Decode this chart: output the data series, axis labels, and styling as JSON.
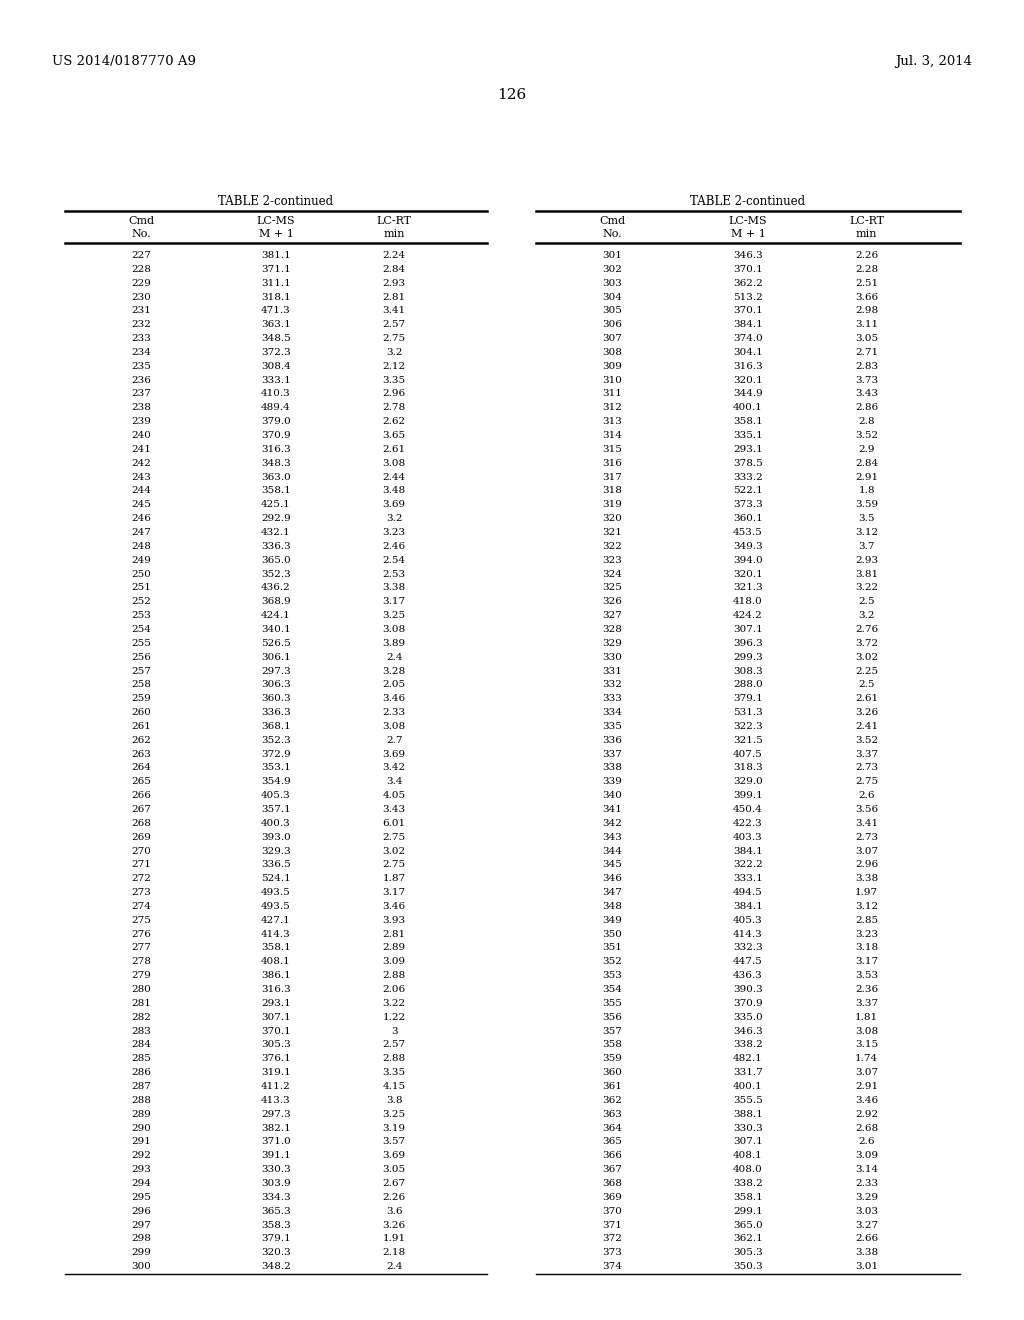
{
  "header_left": "US 2014/0187770 A9",
  "header_right": "Jul. 3, 2014",
  "page_number": "126",
  "table_title": "TABLE 2-continued",
  "col_headers_line1": [
    "Cmd",
    "LC-MS",
    "LC-RT"
  ],
  "col_headers_line2": [
    "No.",
    "M + 1",
    "min"
  ],
  "left_data": [
    [
      227,
      "381.1",
      "2.24"
    ],
    [
      228,
      "371.1",
      "2.84"
    ],
    [
      229,
      "311.1",
      "2.93"
    ],
    [
      230,
      "318.1",
      "2.81"
    ],
    [
      231,
      "471.3",
      "3.41"
    ],
    [
      232,
      "363.1",
      "2.57"
    ],
    [
      233,
      "348.5",
      "2.75"
    ],
    [
      234,
      "372.3",
      "3.2"
    ],
    [
      235,
      "308.4",
      "2.12"
    ],
    [
      236,
      "333.1",
      "3.35"
    ],
    [
      237,
      "410.3",
      "2.96"
    ],
    [
      238,
      "489.4",
      "2.78"
    ],
    [
      239,
      "379.0",
      "2.62"
    ],
    [
      240,
      "370.9",
      "3.65"
    ],
    [
      241,
      "316.3",
      "2.61"
    ],
    [
      242,
      "348.3",
      "3.08"
    ],
    [
      243,
      "363.0",
      "2.44"
    ],
    [
      244,
      "358.1",
      "3.48"
    ],
    [
      245,
      "425.1",
      "3.69"
    ],
    [
      246,
      "292.9",
      "3.2"
    ],
    [
      247,
      "432.1",
      "3.23"
    ],
    [
      248,
      "336.3",
      "2.46"
    ],
    [
      249,
      "365.0",
      "2.54"
    ],
    [
      250,
      "352.3",
      "2.53"
    ],
    [
      251,
      "436.2",
      "3.38"
    ],
    [
      252,
      "368.9",
      "3.17"
    ],
    [
      253,
      "424.1",
      "3.25"
    ],
    [
      254,
      "340.1",
      "3.08"
    ],
    [
      255,
      "526.5",
      "3.89"
    ],
    [
      256,
      "306.1",
      "2.4"
    ],
    [
      257,
      "297.3",
      "3.28"
    ],
    [
      258,
      "306.3",
      "2.05"
    ],
    [
      259,
      "360.3",
      "3.46"
    ],
    [
      260,
      "336.3",
      "2.33"
    ],
    [
      261,
      "368.1",
      "3.08"
    ],
    [
      262,
      "352.3",
      "2.7"
    ],
    [
      263,
      "372.9",
      "3.69"
    ],
    [
      264,
      "353.1",
      "3.42"
    ],
    [
      265,
      "354.9",
      "3.4"
    ],
    [
      266,
      "405.3",
      "4.05"
    ],
    [
      267,
      "357.1",
      "3.43"
    ],
    [
      268,
      "400.3",
      "6.01"
    ],
    [
      269,
      "393.0",
      "2.75"
    ],
    [
      270,
      "329.3",
      "3.02"
    ],
    [
      271,
      "336.5",
      "2.75"
    ],
    [
      272,
      "524.1",
      "1.87"
    ],
    [
      273,
      "493.5",
      "3.17"
    ],
    [
      274,
      "493.5",
      "3.46"
    ],
    [
      275,
      "427.1",
      "3.93"
    ],
    [
      276,
      "414.3",
      "2.81"
    ],
    [
      277,
      "358.1",
      "2.89"
    ],
    [
      278,
      "408.1",
      "3.09"
    ],
    [
      279,
      "386.1",
      "2.88"
    ],
    [
      280,
      "316.3",
      "2.06"
    ],
    [
      281,
      "293.1",
      "3.22"
    ],
    [
      282,
      "307.1",
      "1.22"
    ],
    [
      283,
      "370.1",
      "3"
    ],
    [
      284,
      "305.3",
      "2.57"
    ],
    [
      285,
      "376.1",
      "2.88"
    ],
    [
      286,
      "319.1",
      "3.35"
    ],
    [
      287,
      "411.2",
      "4.15"
    ],
    [
      288,
      "413.3",
      "3.8"
    ],
    [
      289,
      "297.3",
      "3.25"
    ],
    [
      290,
      "382.1",
      "3.19"
    ],
    [
      291,
      "371.0",
      "3.57"
    ],
    [
      292,
      "391.1",
      "3.69"
    ],
    [
      293,
      "330.3",
      "3.05"
    ],
    [
      294,
      "303.9",
      "2.67"
    ],
    [
      295,
      "334.3",
      "2.26"
    ],
    [
      296,
      "365.3",
      "3.6"
    ],
    [
      297,
      "358.3",
      "3.26"
    ],
    [
      298,
      "379.1",
      "1.91"
    ],
    [
      299,
      "320.3",
      "2.18"
    ],
    [
      300,
      "348.2",
      "2.4"
    ]
  ],
  "right_data": [
    [
      301,
      "346.3",
      "2.26"
    ],
    [
      302,
      "370.1",
      "2.28"
    ],
    [
      303,
      "362.2",
      "2.51"
    ],
    [
      304,
      "513.2",
      "3.66"
    ],
    [
      305,
      "370.1",
      "2.98"
    ],
    [
      306,
      "384.1",
      "3.11"
    ],
    [
      307,
      "374.0",
      "3.05"
    ],
    [
      308,
      "304.1",
      "2.71"
    ],
    [
      309,
      "316.3",
      "2.83"
    ],
    [
      310,
      "320.1",
      "3.73"
    ],
    [
      311,
      "344.9",
      "3.43"
    ],
    [
      312,
      "400.1",
      "2.86"
    ],
    [
      313,
      "358.1",
      "2.8"
    ],
    [
      314,
      "335.1",
      "3.52"
    ],
    [
      315,
      "293.1",
      "2.9"
    ],
    [
      316,
      "378.5",
      "2.84"
    ],
    [
      317,
      "333.2",
      "2.91"
    ],
    [
      318,
      "522.1",
      "1.8"
    ],
    [
      319,
      "373.3",
      "3.59"
    ],
    [
      320,
      "360.1",
      "3.5"
    ],
    [
      321,
      "453.5",
      "3.12"
    ],
    [
      322,
      "349.3",
      "3.7"
    ],
    [
      323,
      "394.0",
      "2.93"
    ],
    [
      324,
      "320.1",
      "3.81"
    ],
    [
      325,
      "321.3",
      "3.22"
    ],
    [
      326,
      "418.0",
      "2.5"
    ],
    [
      327,
      "424.2",
      "3.2"
    ],
    [
      328,
      "307.1",
      "2.76"
    ],
    [
      329,
      "396.3",
      "3.72"
    ],
    [
      330,
      "299.3",
      "3.02"
    ],
    [
      331,
      "308.3",
      "2.25"
    ],
    [
      332,
      "288.0",
      "2.5"
    ],
    [
      333,
      "379.1",
      "2.61"
    ],
    [
      334,
      "531.3",
      "3.26"
    ],
    [
      335,
      "322.3",
      "2.41"
    ],
    [
      336,
      "321.5",
      "3.52"
    ],
    [
      337,
      "407.5",
      "3.37"
    ],
    [
      338,
      "318.3",
      "2.73"
    ],
    [
      339,
      "329.0",
      "2.75"
    ],
    [
      340,
      "399.1",
      "2.6"
    ],
    [
      341,
      "450.4",
      "3.56"
    ],
    [
      342,
      "422.3",
      "3.41"
    ],
    [
      343,
      "403.3",
      "2.73"
    ],
    [
      344,
      "384.1",
      "3.07"
    ],
    [
      345,
      "322.2",
      "2.96"
    ],
    [
      346,
      "333.1",
      "3.38"
    ],
    [
      347,
      "494.5",
      "1.97"
    ],
    [
      348,
      "384.1",
      "3.12"
    ],
    [
      349,
      "405.3",
      "2.85"
    ],
    [
      350,
      "414.3",
      "3.23"
    ],
    [
      351,
      "332.3",
      "3.18"
    ],
    [
      352,
      "447.5",
      "3.17"
    ],
    [
      353,
      "436.3",
      "3.53"
    ],
    [
      354,
      "390.3",
      "2.36"
    ],
    [
      355,
      "370.9",
      "3.37"
    ],
    [
      356,
      "335.0",
      "1.81"
    ],
    [
      357,
      "346.3",
      "3.08"
    ],
    [
      358,
      "338.2",
      "3.15"
    ],
    [
      359,
      "482.1",
      "1.74"
    ],
    [
      360,
      "331.7",
      "3.07"
    ],
    [
      361,
      "400.1",
      "2.91"
    ],
    [
      362,
      "355.5",
      "3.46"
    ],
    [
      363,
      "388.1",
      "2.92"
    ],
    [
      364,
      "330.3",
      "2.68"
    ],
    [
      365,
      "307.1",
      "2.6"
    ],
    [
      366,
      "408.1",
      "3.09"
    ],
    [
      367,
      "408.0",
      "3.14"
    ],
    [
      368,
      "338.2",
      "2.33"
    ],
    [
      369,
      "358.1",
      "3.29"
    ],
    [
      370,
      "299.1",
      "3.03"
    ],
    [
      371,
      "365.0",
      "3.27"
    ],
    [
      372,
      "362.1",
      "2.66"
    ],
    [
      373,
      "305.3",
      "3.38"
    ],
    [
      374,
      "350.3",
      "3.01"
    ]
  ],
  "bg_color": "#ffffff",
  "text_color": "#000000",
  "header_fontsize": 9.5,
  "title_fontsize": 8.5,
  "data_fontsize": 7.5,
  "col_header_fontsize": 8.0,
  "page_num_fontsize": 11
}
